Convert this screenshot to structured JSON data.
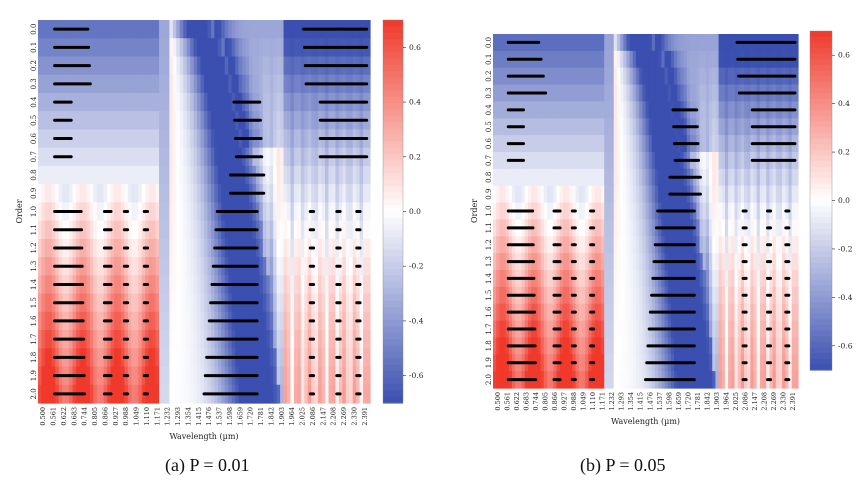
{
  "chart_data": [
    {
      "type": "heatmap",
      "panel": "a",
      "caption": "(a) P = 0.01",
      "xlabel": "Wavelength (µm)",
      "ylabel": "Order",
      "x_tick_labels": [
        "0.500",
        "0.561",
        "0.622",
        "0.683",
        "0.744",
        "0.805",
        "0.866",
        "0.927",
        "0.988",
        "1.049",
        "1.110",
        "1.171",
        "1.232",
        "1.293",
        "1.354",
        "1.415",
        "1.476",
        "1.537",
        "1.598",
        "1.659",
        "1.720",
        "1.781",
        "1.842",
        "1.903",
        "1.964",
        "2.025",
        "2.086",
        "2.147",
        "2.208",
        "2.269",
        "2.330",
        "2.391"
      ],
      "y_tick_labels": [
        "0.0",
        "0.1",
        "0.2",
        "0.3",
        "0.4",
        "0.5",
        "0.6",
        "0.7",
        "0.8",
        "0.9",
        "1.0",
        "1.1",
        "1.2",
        "1.3",
        "1.4",
        "1.5",
        "1.6",
        "1.7",
        "1.8",
        "1.9",
        "2.0"
      ],
      "colorbar": {
        "min": -0.7,
        "max": 0.7,
        "ticks": [
          "0.6",
          "0.4",
          "0.2",
          "0.0",
          "-0.2",
          "-0.4",
          "-0.6"
        ],
        "colormap": "bwr"
      },
      "colors": {
        "negative": "#3a4fb0",
        "neutral": "#ffffff",
        "positive": "#f0392b",
        "marker": "#000000"
      }
    },
    {
      "type": "heatmap",
      "panel": "b",
      "caption": "(b) P = 0.05",
      "xlabel": "Wavelength (µm)",
      "ylabel": "Order",
      "x_tick_labels": [
        "0.500",
        "0.561",
        "0.622",
        "0.683",
        "0.744",
        "0.805",
        "0.866",
        "0.927",
        "0.988",
        "1.049",
        "1.110",
        "1.171",
        "1.232",
        "1.293",
        "1.354",
        "1.415",
        "1.476",
        "1.537",
        "1.598",
        "1.659",
        "1.720",
        "1.781",
        "1.842",
        "1.903",
        "1.964",
        "2.025",
        "2.086",
        "2.147",
        "2.208",
        "2.269",
        "2.330",
        "2.391"
      ],
      "y_tick_labels": [
        "0.0",
        "0.1",
        "0.2",
        "0.3",
        "0.4",
        "0.5",
        "0.6",
        "0.7",
        "0.8",
        "0.9",
        "1.0",
        "1.1",
        "1.2",
        "1.3",
        "1.4",
        "1.5",
        "1.6",
        "1.7",
        "1.8",
        "1.9",
        "2.0"
      ],
      "colorbar": {
        "min": -0.7,
        "max": 0.7,
        "ticks": [
          "0.6",
          "0.4",
          "0.2",
          "0.0",
          "-0.2",
          "-0.4",
          "-0.6"
        ],
        "colormap": "bwr"
      },
      "colors": {
        "negative": "#3a4fb0",
        "neutral": "#ffffff",
        "positive": "#f0392b",
        "marker": "#000000"
      }
    }
  ]
}
